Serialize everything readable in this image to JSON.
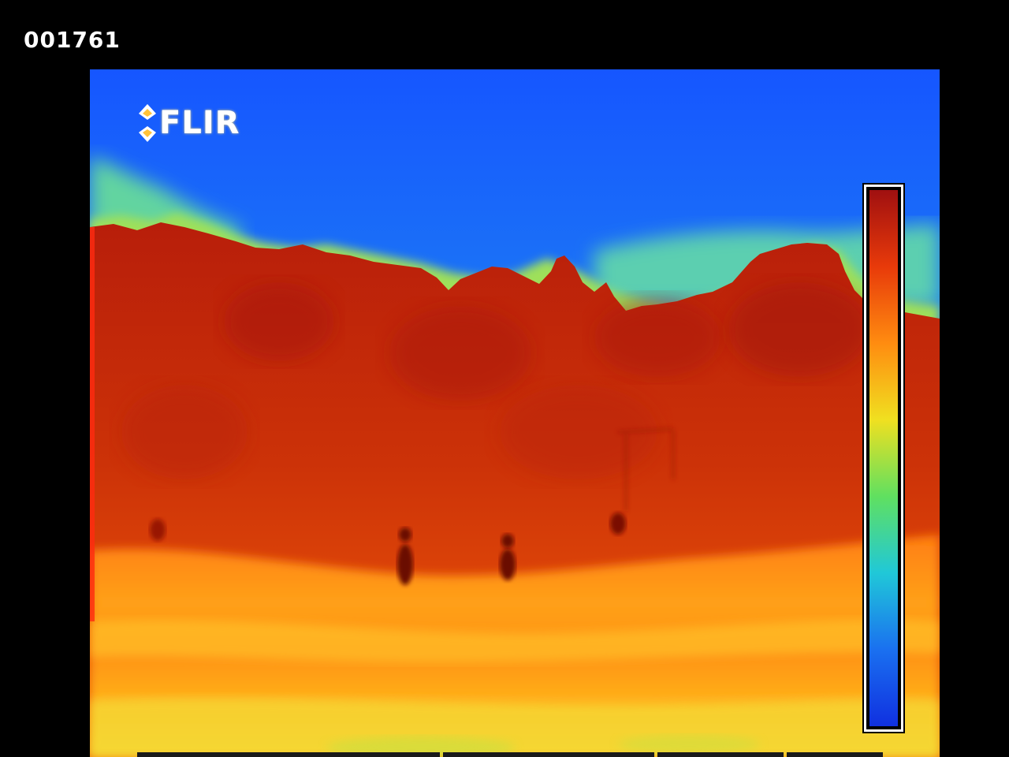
{
  "overlay": {
    "frame_counter": "001761",
    "logo_text": "FLIR"
  },
  "icons": {
    "logo_mark": "flir-diamond-icon"
  },
  "palette": {
    "sky_top": "#1a5cff",
    "sky_mid": "#1f8bf0",
    "cloud": "#6fd6a8",
    "treeline": "#c22a0c",
    "hot_red": "#b81e08",
    "ground_orange": "#ff7a10",
    "ground_yellow": "#ffc21a",
    "scale_colors": [
      "#a01010",
      "#e83a0a",
      "#ff8c10",
      "#f0e020",
      "#60e060",
      "#20c8d8",
      "#1a70f0",
      "#1030e0"
    ]
  }
}
